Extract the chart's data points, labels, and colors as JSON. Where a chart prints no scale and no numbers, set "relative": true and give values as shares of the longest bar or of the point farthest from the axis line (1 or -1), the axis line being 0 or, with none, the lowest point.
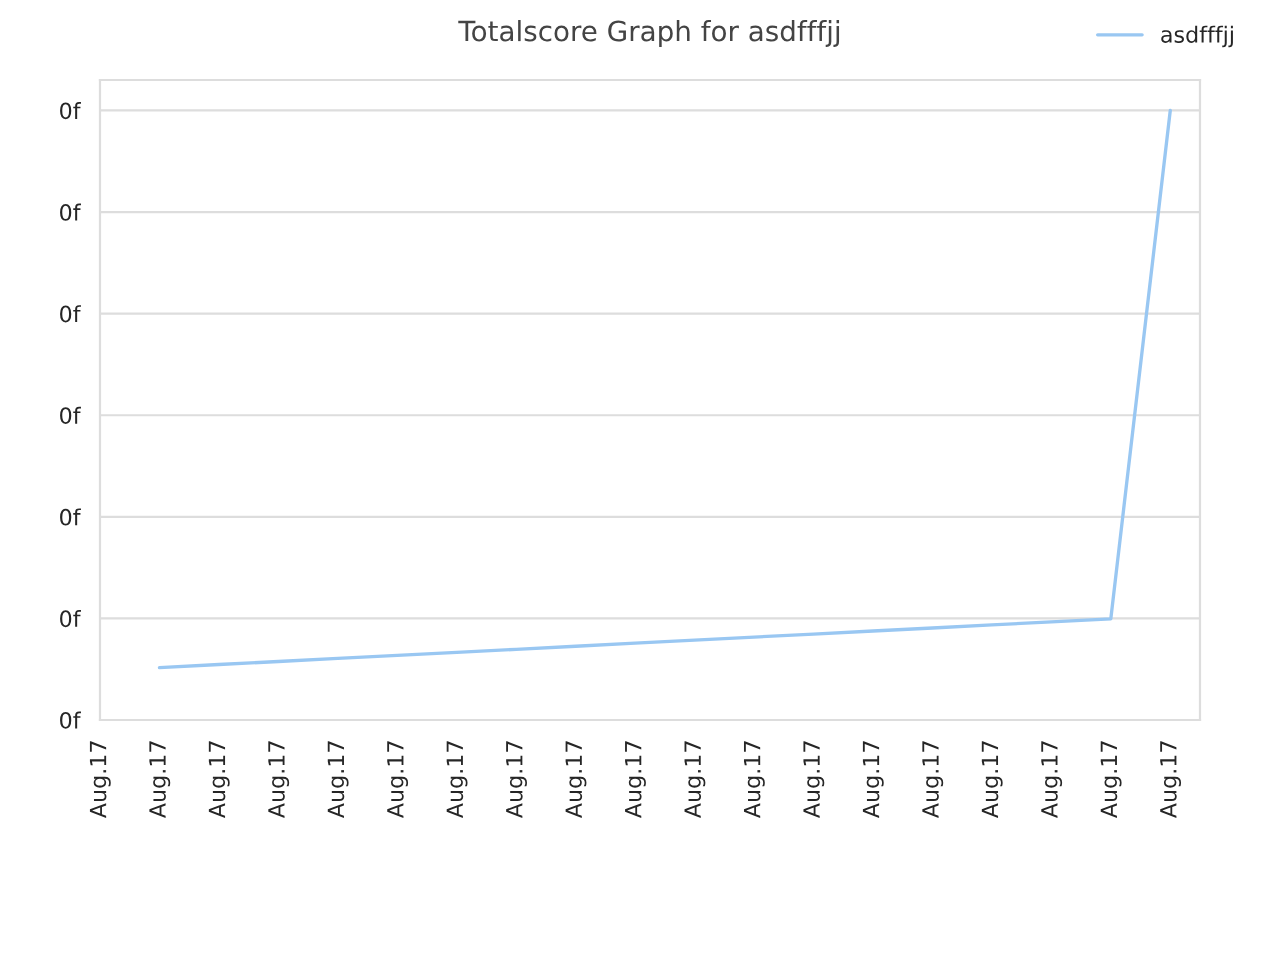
{
  "chart_data": {
    "type": "line",
    "title": "Totalscore Graph for asdfffjj",
    "relative": true,
    "categories": [
      "Aug.17",
      "Aug.17",
      "Aug.17",
      "Aug.17",
      "Aug.17",
      "Aug.17",
      "Aug.17",
      "Aug.17",
      "Aug.17",
      "Aug.17",
      "Aug.17",
      "Aug.17",
      "Aug.17",
      "Aug.17",
      "Aug.17",
      "Aug.17",
      "Aug.17",
      "Aug.17",
      "Aug.17"
    ],
    "series": [
      {
        "name": "asdfffjj",
        "color": "#99c7f2",
        "values": [
          null,
          0.086,
          0.091,
          0.096,
          0.101,
          0.106,
          0.111,
          0.116,
          0.121,
          0.126,
          0.131,
          0.136,
          0.141,
          0.146,
          0.151,
          0.156,
          0.161,
          0.166,
          1.0
        ]
      }
    ],
    "annotations": [
      "0f",
      "0f",
      "0f",
      "0f",
      "0f",
      "0f",
      "0f"
    ],
    "grid": "y",
    "legend": "top right",
    "marker": "none",
    "line_style": "solid"
  }
}
